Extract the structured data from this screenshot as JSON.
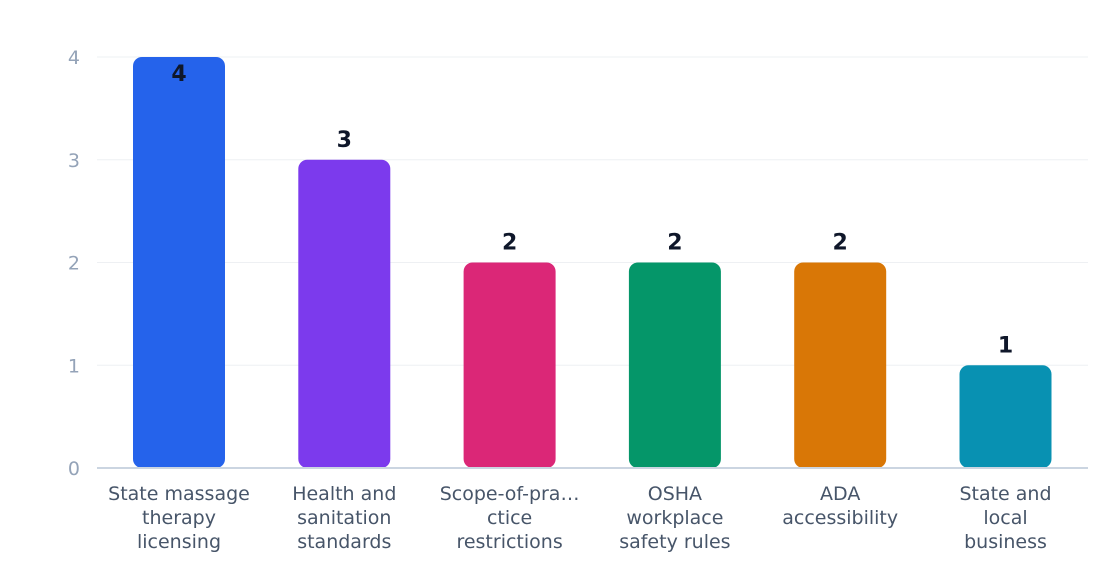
{
  "chart_data": {
    "type": "bar",
    "title": "",
    "xlabel": "",
    "ylabel": "",
    "ylim": [
      0,
      4
    ],
    "yticks": [
      0,
      1,
      2,
      3,
      4
    ],
    "grid": true,
    "legend": "none",
    "categories": [
      [
        "State massage",
        "therapy",
        "licensing"
      ],
      [
        "Health and",
        "sanitation",
        "standards"
      ],
      [
        "Scope-of-pra…",
        "ctice",
        "restrictions"
      ],
      [
        "OSHA",
        "workplace",
        "safety rules"
      ],
      [
        "ADA",
        "accessibility"
      ],
      [
        "State and",
        "local",
        "business"
      ]
    ],
    "values": [
      4,
      3,
      2,
      2,
      2,
      1
    ],
    "colors": [
      "#2563eb",
      "#7c3aed",
      "#db2777",
      "#059669",
      "#d97706",
      "#0891b2"
    ]
  }
}
